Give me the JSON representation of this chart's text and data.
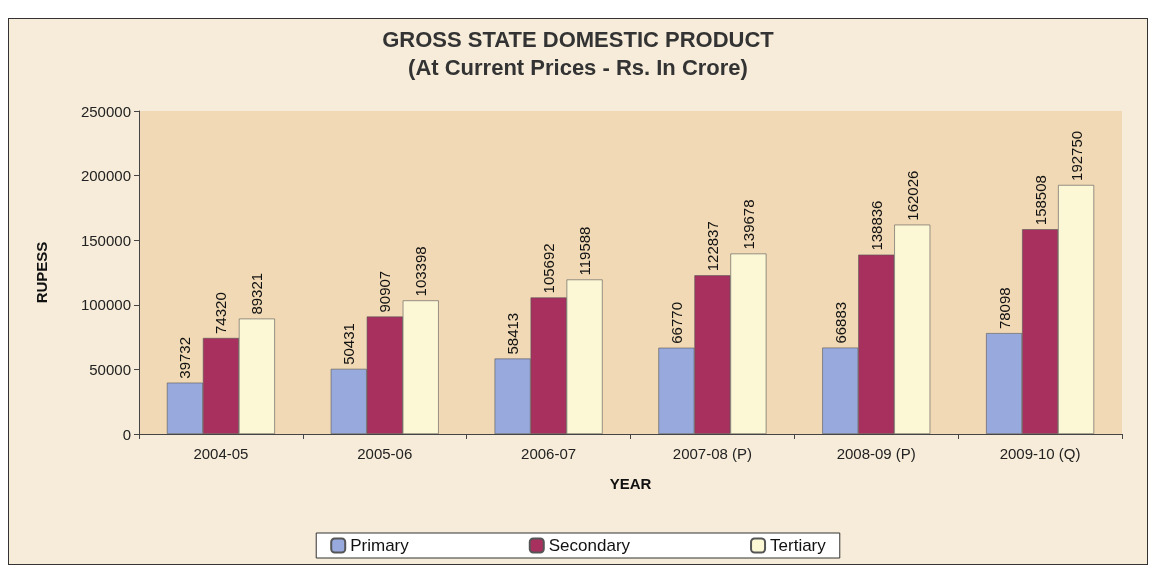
{
  "chart_data": {
    "type": "bar",
    "title": "GROSS STATE DOMESTIC PRODUCT",
    "subtitle": "(At Current Prices - Rs. In Crore)",
    "xlabel": "YEAR",
    "ylabel": "RUPESS",
    "categories": [
      "2004-05",
      "2005-06",
      "2006-07",
      "2007-08 (P)",
      "2008-09 (P)",
      "2009-10 (Q)"
    ],
    "series": [
      {
        "name": "Primary",
        "color": "#98a9de",
        "values": [
          39732,
          50431,
          58413,
          66770,
          66883,
          78098
        ]
      },
      {
        "name": "Secondary",
        "color": "#a8305f",
        "values": [
          74320,
          90907,
          105692,
          122837,
          138836,
          158508
        ]
      },
      {
        "name": "Tertiary",
        "color": "#fcf8d6",
        "values": [
          89321,
          103398,
          119588,
          139678,
          162026,
          192750
        ]
      }
    ],
    "ylim": [
      0,
      250000
    ],
    "yticks": [
      0,
      50000,
      100000,
      150000,
      200000,
      250000
    ],
    "grid": false,
    "legend": "bottom",
    "data_labels": true
  }
}
